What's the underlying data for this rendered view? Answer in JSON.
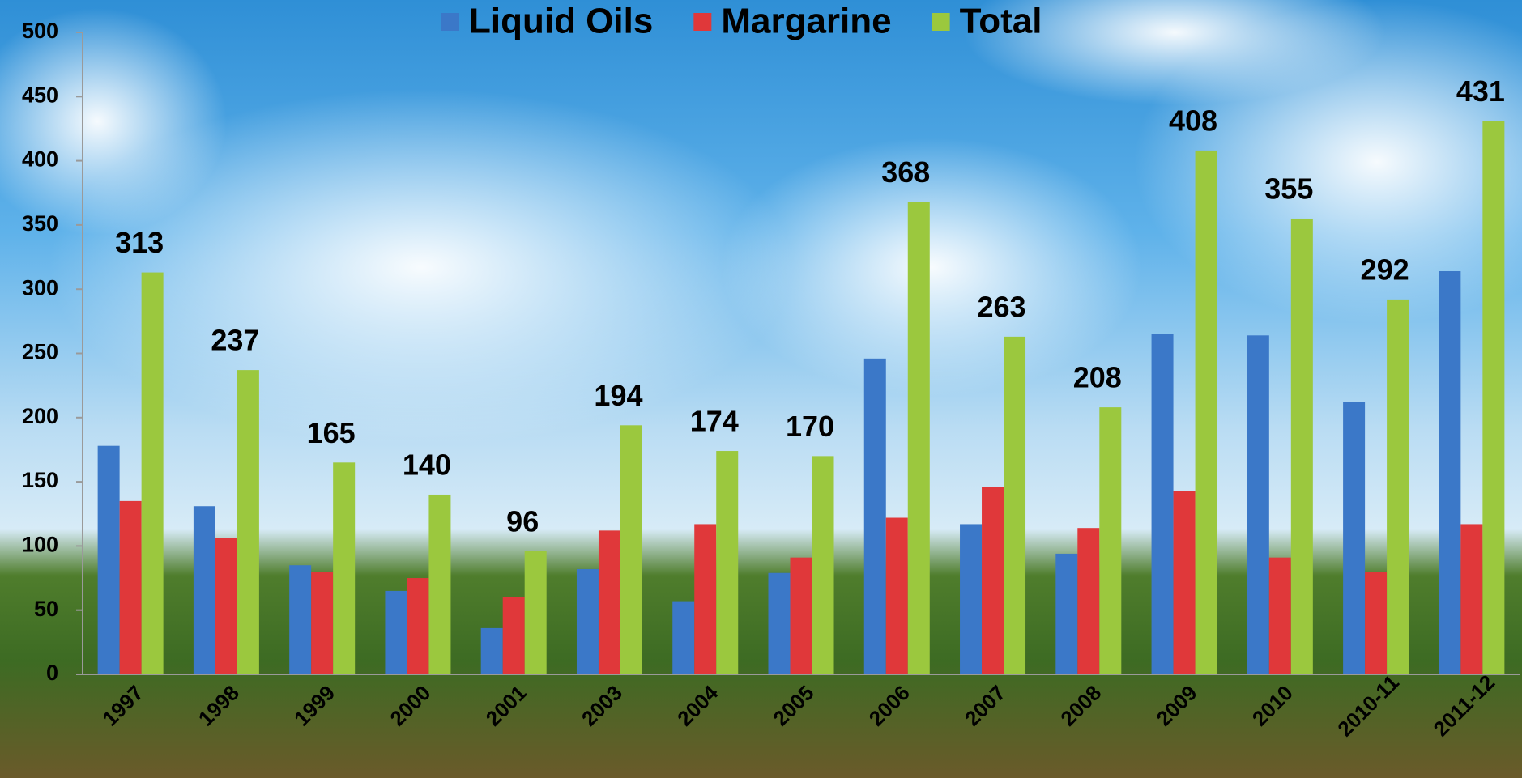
{
  "chart_data": {
    "type": "bar",
    "categories": [
      "1997",
      "1998",
      "1999",
      "2000",
      "2001",
      "2003",
      "2004",
      "2005",
      "2006",
      "2007",
      "2008",
      "2009",
      "2010",
      "2010-11",
      "2011-12"
    ],
    "series": [
      {
        "name": "Liquid Oils",
        "color": "#3b78c8",
        "values": [
          178,
          131,
          85,
          65,
          36,
          82,
          57,
          79,
          246,
          117,
          94,
          265,
          264,
          212,
          314
        ]
      },
      {
        "name": "Margarine",
        "color": "#e0383a",
        "values": [
          135,
          106,
          80,
          75,
          60,
          112,
          117,
          91,
          122,
          146,
          114,
          143,
          91,
          80,
          117
        ]
      },
      {
        "name": "Total",
        "color": "#9bc83e",
        "values": [
          313,
          237,
          165,
          140,
          96,
          194,
          174,
          170,
          368,
          263,
          208,
          408,
          355,
          292,
          431
        ],
        "labels": true
      }
    ],
    "ylim": [
      0,
      500
    ],
    "yticks": [
      0,
      50,
      100,
      150,
      200,
      250,
      300,
      350,
      400,
      450,
      500
    ]
  }
}
